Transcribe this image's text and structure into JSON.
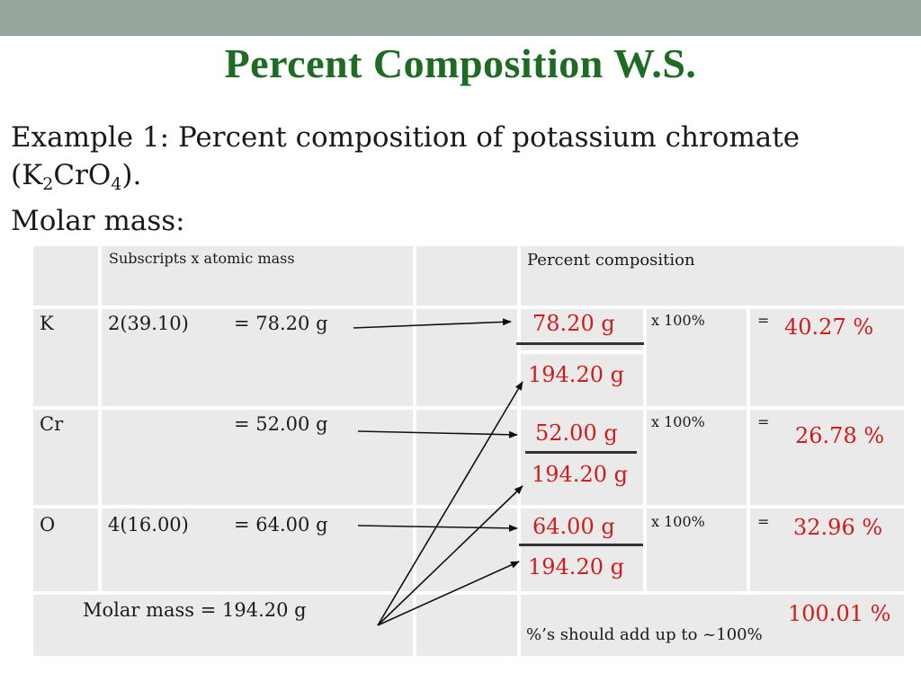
{
  "slide": {
    "title": "Percent Composition W.S.",
    "example_prefix": "Example 1: Percent composition of potassium chromate",
    "formula_open": "(K",
    "formula_sub1": "2",
    "formula_mid": "CrO",
    "formula_sub2": "4",
    "formula_close": ").",
    "molar_mass_label": "Molar mass:"
  },
  "table": {
    "header_subscripts": "Subscripts x atomic mass",
    "header_percent": "Percent composition",
    "rows": [
      {
        "element": "K",
        "calc": "2(39.10)",
        "mass": "= 78.20 g",
        "numerator": "78.20 g",
        "denominator": "194.20 g",
        "times": "x 100%",
        "equals": "=",
        "result": "40.27 %"
      },
      {
        "element": "Cr",
        "calc": "",
        "mass": "= 52.00 g",
        "numerator": "52.00 g",
        "denominator": "194.20 g",
        "times": "x 100%",
        "equals": "=",
        "result": "26.78 %"
      },
      {
        "element": "O",
        "calc": "4(16.00)",
        "mass": "= 64.00 g",
        "numerator": "64.00 g",
        "denominator": "194.20 g",
        "times": "x 100%",
        "equals": "=",
        "result": "32.96 %"
      }
    ],
    "molar_mass_total": "Molar mass = 194.20 g",
    "total_percent": "100.01 %",
    "note": "%’s should add up to ~100%"
  },
  "colors": {
    "title": "#1e6b23",
    "answer": "#d01c1c",
    "cell": "#eaeaea",
    "topbar": "#97a59a"
  }
}
